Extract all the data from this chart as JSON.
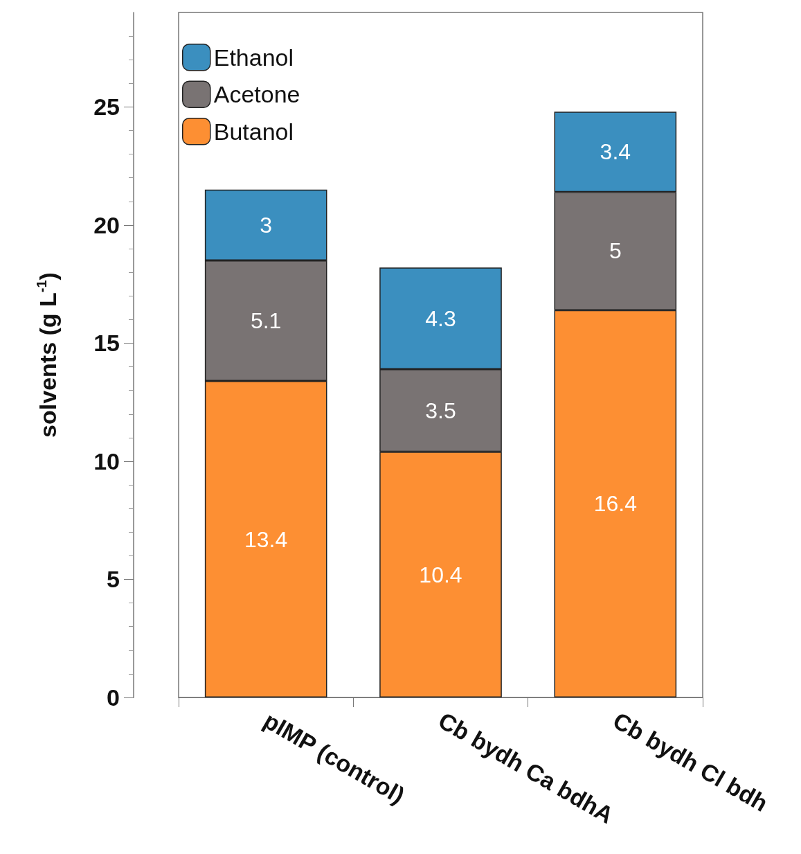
{
  "chart_data": {
    "type": "bar",
    "stacked": true,
    "ylabel": "solvents (g L$^{-1}$)",
    "categories": [
      "pIMP (control)",
      "Cb bydh Ca bdhA",
      "Cb bydh Cl bdh"
    ],
    "series": [
      {
        "name": "Butanol",
        "color": "#fd8f33",
        "values": [
          13.4,
          10.4,
          16.4
        ]
      },
      {
        "name": "Acetone",
        "color": "#797373",
        "values": [
          5.1,
          3.5,
          5
        ]
      },
      {
        "name": "Ethanol",
        "color": "#3b8fbf",
        "values": [
          3,
          4.3,
          3.4
        ]
      }
    ],
    "ylim": [
      0,
      29
    ],
    "yticks": [
      0,
      5,
      10,
      15,
      20,
      25
    ],
    "grid": false,
    "legend": "top left",
    "data_labels": true
  }
}
